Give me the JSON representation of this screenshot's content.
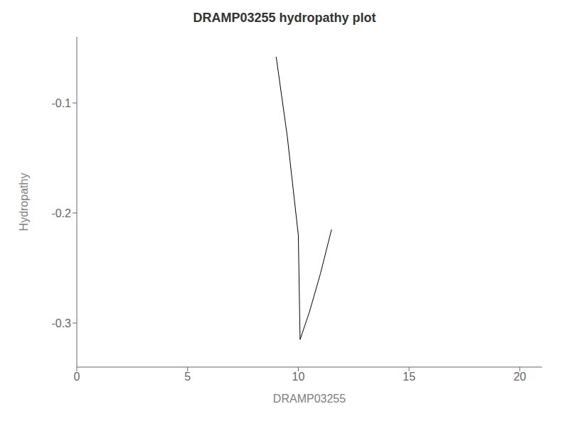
{
  "chart_data": {
    "type": "line",
    "title": "DRAMP03255 hydropathy plot",
    "xlabel": "DRAMP03255",
    "ylabel": "Hydropathy",
    "x": [
      9.0,
      9.5,
      10.0,
      10.08,
      10.5,
      11.0,
      11.5
    ],
    "values": [
      -0.058,
      -0.13,
      -0.22,
      -0.315,
      -0.29,
      -0.255,
      -0.215
    ],
    "color": "#000000",
    "xlim": [
      0,
      21
    ],
    "ylim": [
      -0.34,
      -0.04
    ],
    "xticks": [
      0,
      5,
      10,
      15,
      20
    ],
    "yticks": [
      -0.3,
      -0.2,
      -0.1
    ],
    "grid": false
  }
}
